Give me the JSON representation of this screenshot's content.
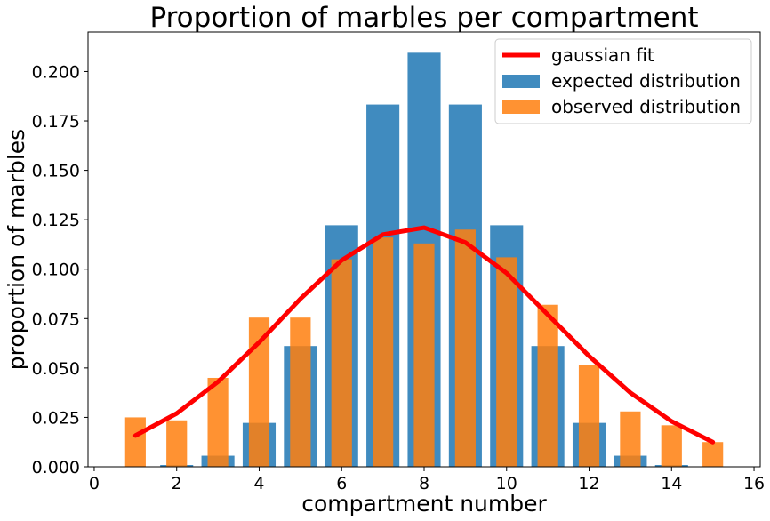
{
  "chart_data": {
    "type": "bar",
    "title": "Proportion of marbles per compartment",
    "xlabel": "compartment number",
    "ylabel": "proportion of marbles",
    "xlim": [
      -0.15,
      16.15
    ],
    "ylim": [
      0,
      0.22
    ],
    "xticks": [
      0,
      2,
      4,
      6,
      8,
      10,
      12,
      14,
      16
    ],
    "yticks": [
      0.0,
      0.025,
      0.05,
      0.075,
      0.1,
      0.125,
      0.15,
      0.175,
      0.2
    ],
    "ytick_labels": [
      "0.000",
      "0.025",
      "0.050",
      "0.075",
      "0.100",
      "0.125",
      "0.150",
      "0.175",
      "0.200"
    ],
    "grid": false,
    "legend_position": "upper right",
    "series": [
      {
        "name": "expected distribution",
        "kind": "bar",
        "color": "#1f77b4",
        "x": [
          1,
          2,
          3,
          4,
          5,
          6,
          7,
          8,
          9,
          10,
          11,
          12,
          13,
          14,
          15
        ],
        "values": [
          0.0001,
          0.0009,
          0.0056,
          0.0222,
          0.0611,
          0.1222,
          0.1833,
          0.2095,
          0.1833,
          0.1222,
          0.0611,
          0.0222,
          0.0056,
          0.0009,
          0.0001
        ]
      },
      {
        "name": "observed distribution",
        "kind": "bar",
        "color": "#ff7f0e",
        "x": [
          1,
          2,
          3,
          4,
          5,
          6,
          7,
          8,
          9,
          10,
          11,
          12,
          13,
          14,
          15
        ],
        "values": [
          0.025,
          0.0235,
          0.045,
          0.0755,
          0.0755,
          0.105,
          0.116,
          0.113,
          0.12,
          0.106,
          0.082,
          0.0515,
          0.028,
          0.021,
          0.0125
        ]
      },
      {
        "name": "gaussian fit",
        "kind": "line",
        "color": "#ff0000",
        "x": [
          1,
          2,
          3,
          4,
          5,
          6,
          7,
          8,
          9,
          10,
          11,
          12,
          13,
          14,
          15
        ],
        "values": [
          0.0158,
          0.027,
          0.043,
          0.063,
          0.085,
          0.1045,
          0.1175,
          0.121,
          0.1135,
          0.098,
          0.077,
          0.056,
          0.0375,
          0.023,
          0.0125
        ]
      }
    ]
  }
}
